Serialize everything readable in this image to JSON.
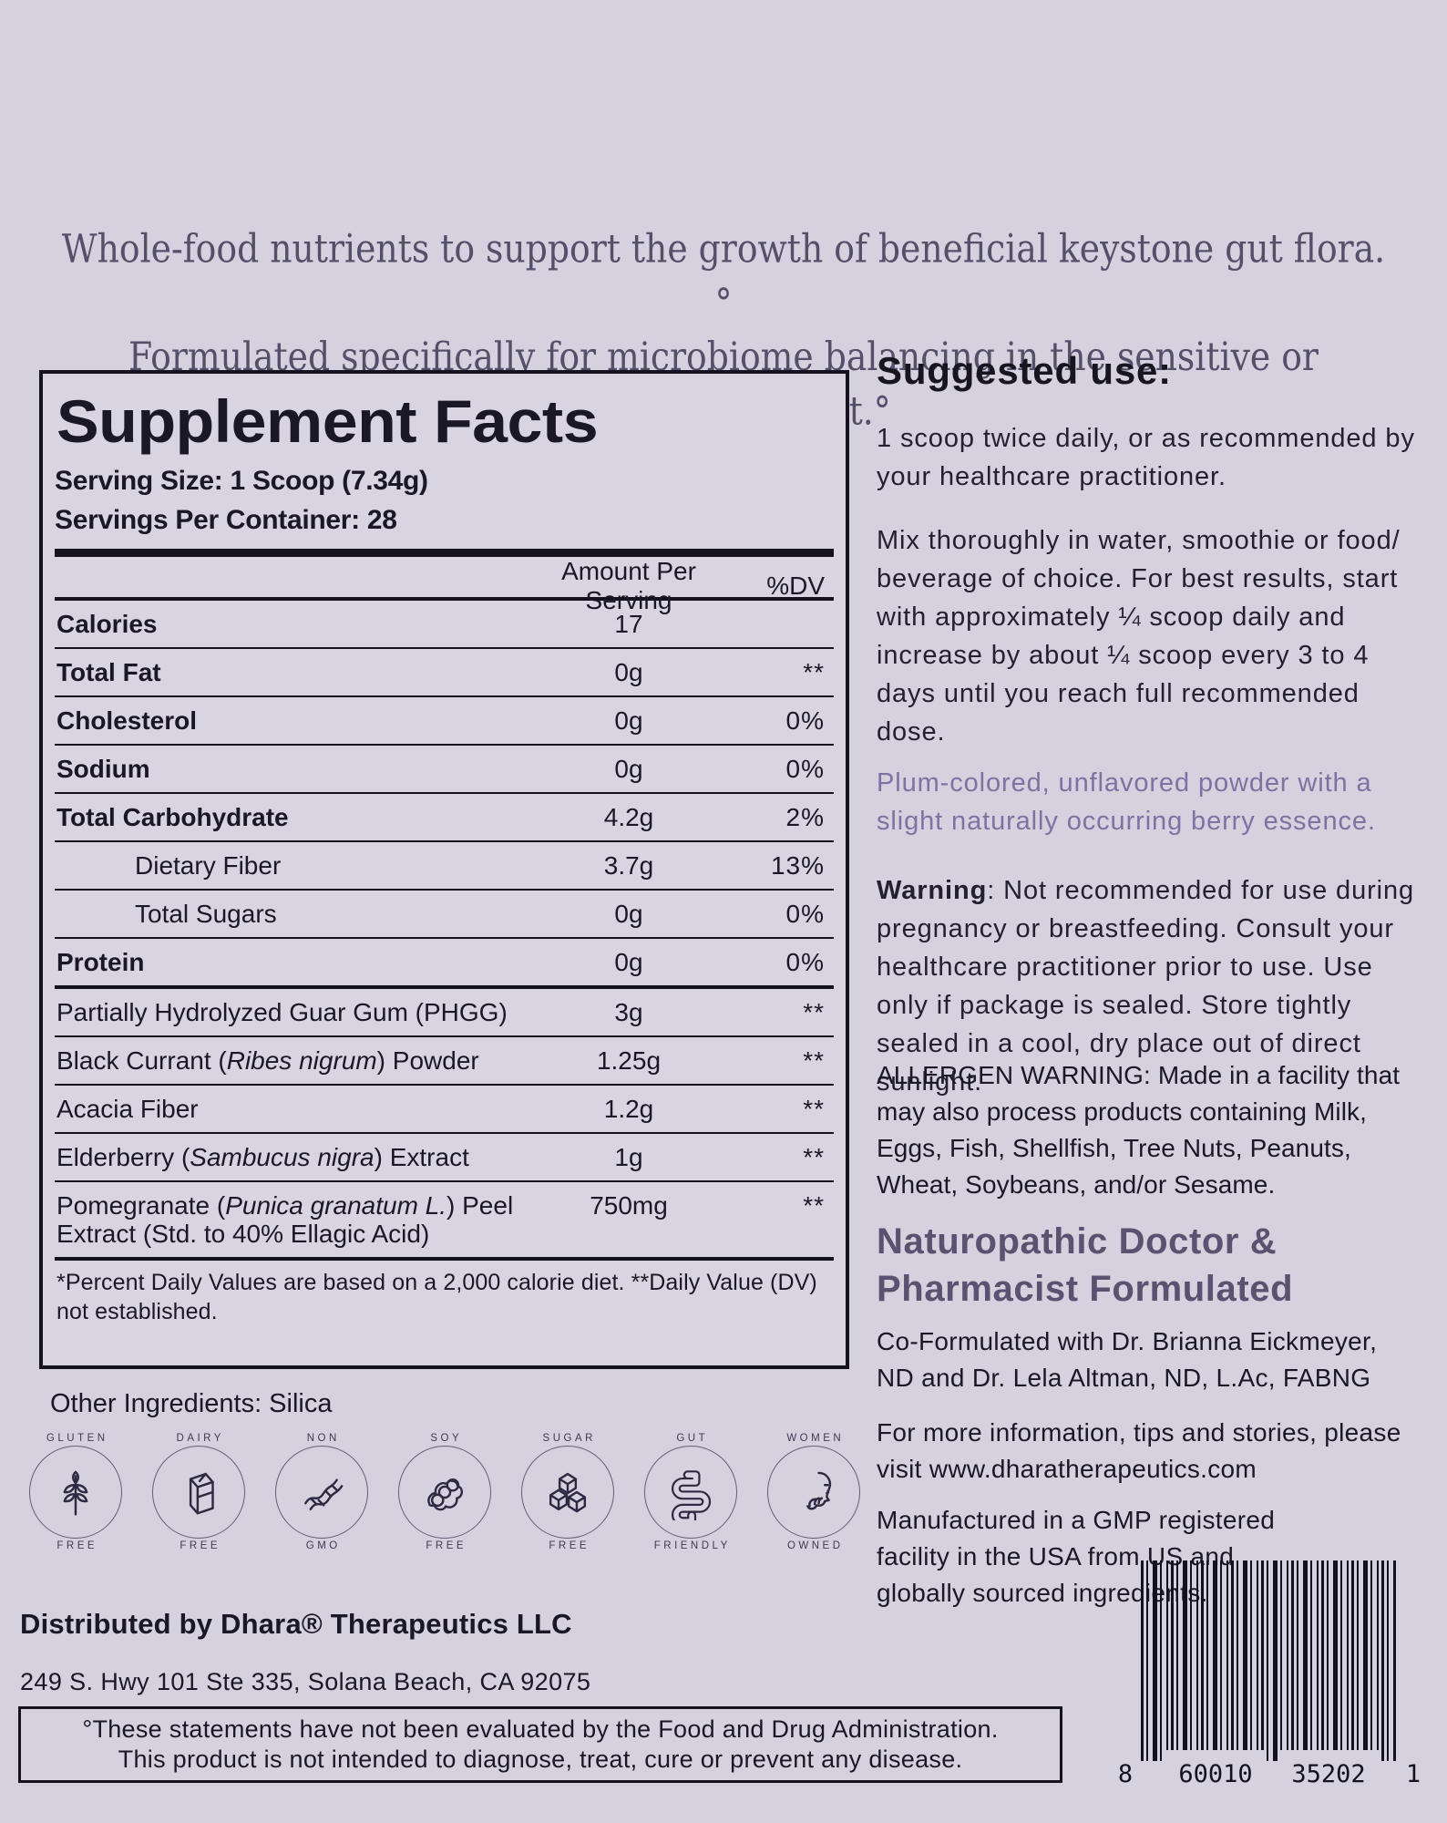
{
  "page": {
    "background": "#d6d1de",
    "text_color": "#1a1826",
    "plum_accent": "#7d73a2",
    "heading_purple": "#5a5270"
  },
  "tagline": {
    "line1": "Whole-food nutrients to support the growth of beneficial keystone gut flora.°",
    "line2": "Formulated specifically for microbiome balancing in the sensitive or rehabilitating gut.°"
  },
  "supplement_facts": {
    "title": "Supplement Facts",
    "serving_size": "Serving Size: 1 Scoop (7.34g)",
    "servings_per_container": "Servings Per Container: 28",
    "columns": {
      "amount": "Amount Per Serving",
      "dv": "%DV"
    },
    "rows": [
      {
        "label": "Calories",
        "amount": "17",
        "dv": "",
        "bold": true
      },
      {
        "label": "Total Fat",
        "amount": "0g",
        "dv": "**",
        "bold": true
      },
      {
        "label": "Cholesterol",
        "amount": "0g",
        "dv": "0%",
        "bold": true
      },
      {
        "label": "Sodium",
        "amount": "0g",
        "dv": "0%",
        "bold": true
      },
      {
        "label": "Total Carbohydrate",
        "amount": "4.2g",
        "dv": "2%",
        "bold": true
      },
      {
        "label": "Dietary Fiber",
        "amount": "3.7g",
        "dv": "13%",
        "indent": true
      },
      {
        "label": "Total Sugars",
        "amount": "0g",
        "dv": "0%",
        "indent": true
      },
      {
        "label": "Protein",
        "amount": "0g",
        "dv": "0%",
        "bold": true
      },
      {
        "label": "Partially Hydrolyzed Guar Gum (PHGG)",
        "amount": "3g",
        "dv": "**",
        "group": true
      },
      {
        "label": "Black Currant (_Ribes nigrum_) Powder",
        "amount": "1.25g",
        "dv": "**"
      },
      {
        "label": "Acacia Fiber",
        "amount": "1.2g",
        "dv": "**"
      },
      {
        "label": "Elderberry (_Sambucus nigra_) Extract",
        "amount": "1g",
        "dv": "**"
      },
      {
        "label": "Pomegranate (_Punica granatum L._) Peel Extract (Std. to 40% Ellagic Acid)",
        "amount": "750mg",
        "dv": "**"
      }
    ],
    "footnote": "*Percent Daily Values are based on a 2,000 calorie diet. **Daily Value (DV) not established."
  },
  "other_ingredients": "Other Ingredients: Silica",
  "badges": [
    {
      "top": "GLUTEN",
      "bottom": "FREE",
      "icon": "wheat"
    },
    {
      "top": "DAIRY",
      "bottom": "FREE",
      "icon": "milk-carton"
    },
    {
      "top": "NON",
      "bottom": "GMO",
      "icon": "dna"
    },
    {
      "top": "SOY",
      "bottom": "FREE",
      "icon": "soybean"
    },
    {
      "top": "SUGAR",
      "bottom": "FREE",
      "icon": "sugar-cubes"
    },
    {
      "top": "GUT",
      "bottom": "FRIENDLY",
      "icon": "intestine"
    },
    {
      "top": "WOMEN",
      "bottom": "OWNED",
      "icon": "woman-face"
    }
  ],
  "right_column": {
    "suggested_use_title": "Suggested use:",
    "use_p1": "1 scoop twice daily, or as recommended by your healthcare practitioner.",
    "use_p2": "Mix thoroughly in water, smoothie or food/ beverage of choice. For best results, start with approximately ¼ scoop daily and increase by about ¼ scoop every 3 to 4 days until you reach full recommended dose.",
    "plum_note": "Plum-colored, unflavored powder with a slight naturally occurring berry essence.",
    "warning_label": "Warning",
    "warning_text": ": Not recommended for use during pregnancy or breastfeeding. Consult your healthcare practitioner prior to use.  Use only if package is sealed. Store tightly sealed in a cool, dry place out of direct sunlight.",
    "allergen": "ALLERGEN WARNING: Made in a facility that may also process products containing Milk, Eggs, Fish, Shellfish, Tree Nuts, Peanuts, Wheat, Soybeans, and/or Sesame.",
    "formulated_title": "Naturopathic Doctor & Pharmacist Formulated",
    "co_formulated": "Co-Formulated with Dr. Brianna Eickmeyer, ND and Dr. Lela Altman, ND, L.Ac, FABNG",
    "more_info": "For more information, tips and stories, please visit www.dharatherapeutics.com",
    "manufactured": "Manufactured in a GMP registered facility in the USA from US and globally sourced ingredients."
  },
  "footer": {
    "distributor": "Distributed by Dhara® Therapeutics LLC",
    "address": "249 S. Hwy 101 Ste 335, Solana Beach, CA 92075",
    "fda_line1": "°These statements have not been evaluated by the Food and Drug Administration.",
    "fda_line2": "This product is not intended to diagnose, treat, cure or prevent any disease.",
    "barcode_digits": [
      "8",
      "60010",
      "35202",
      "1"
    ]
  }
}
